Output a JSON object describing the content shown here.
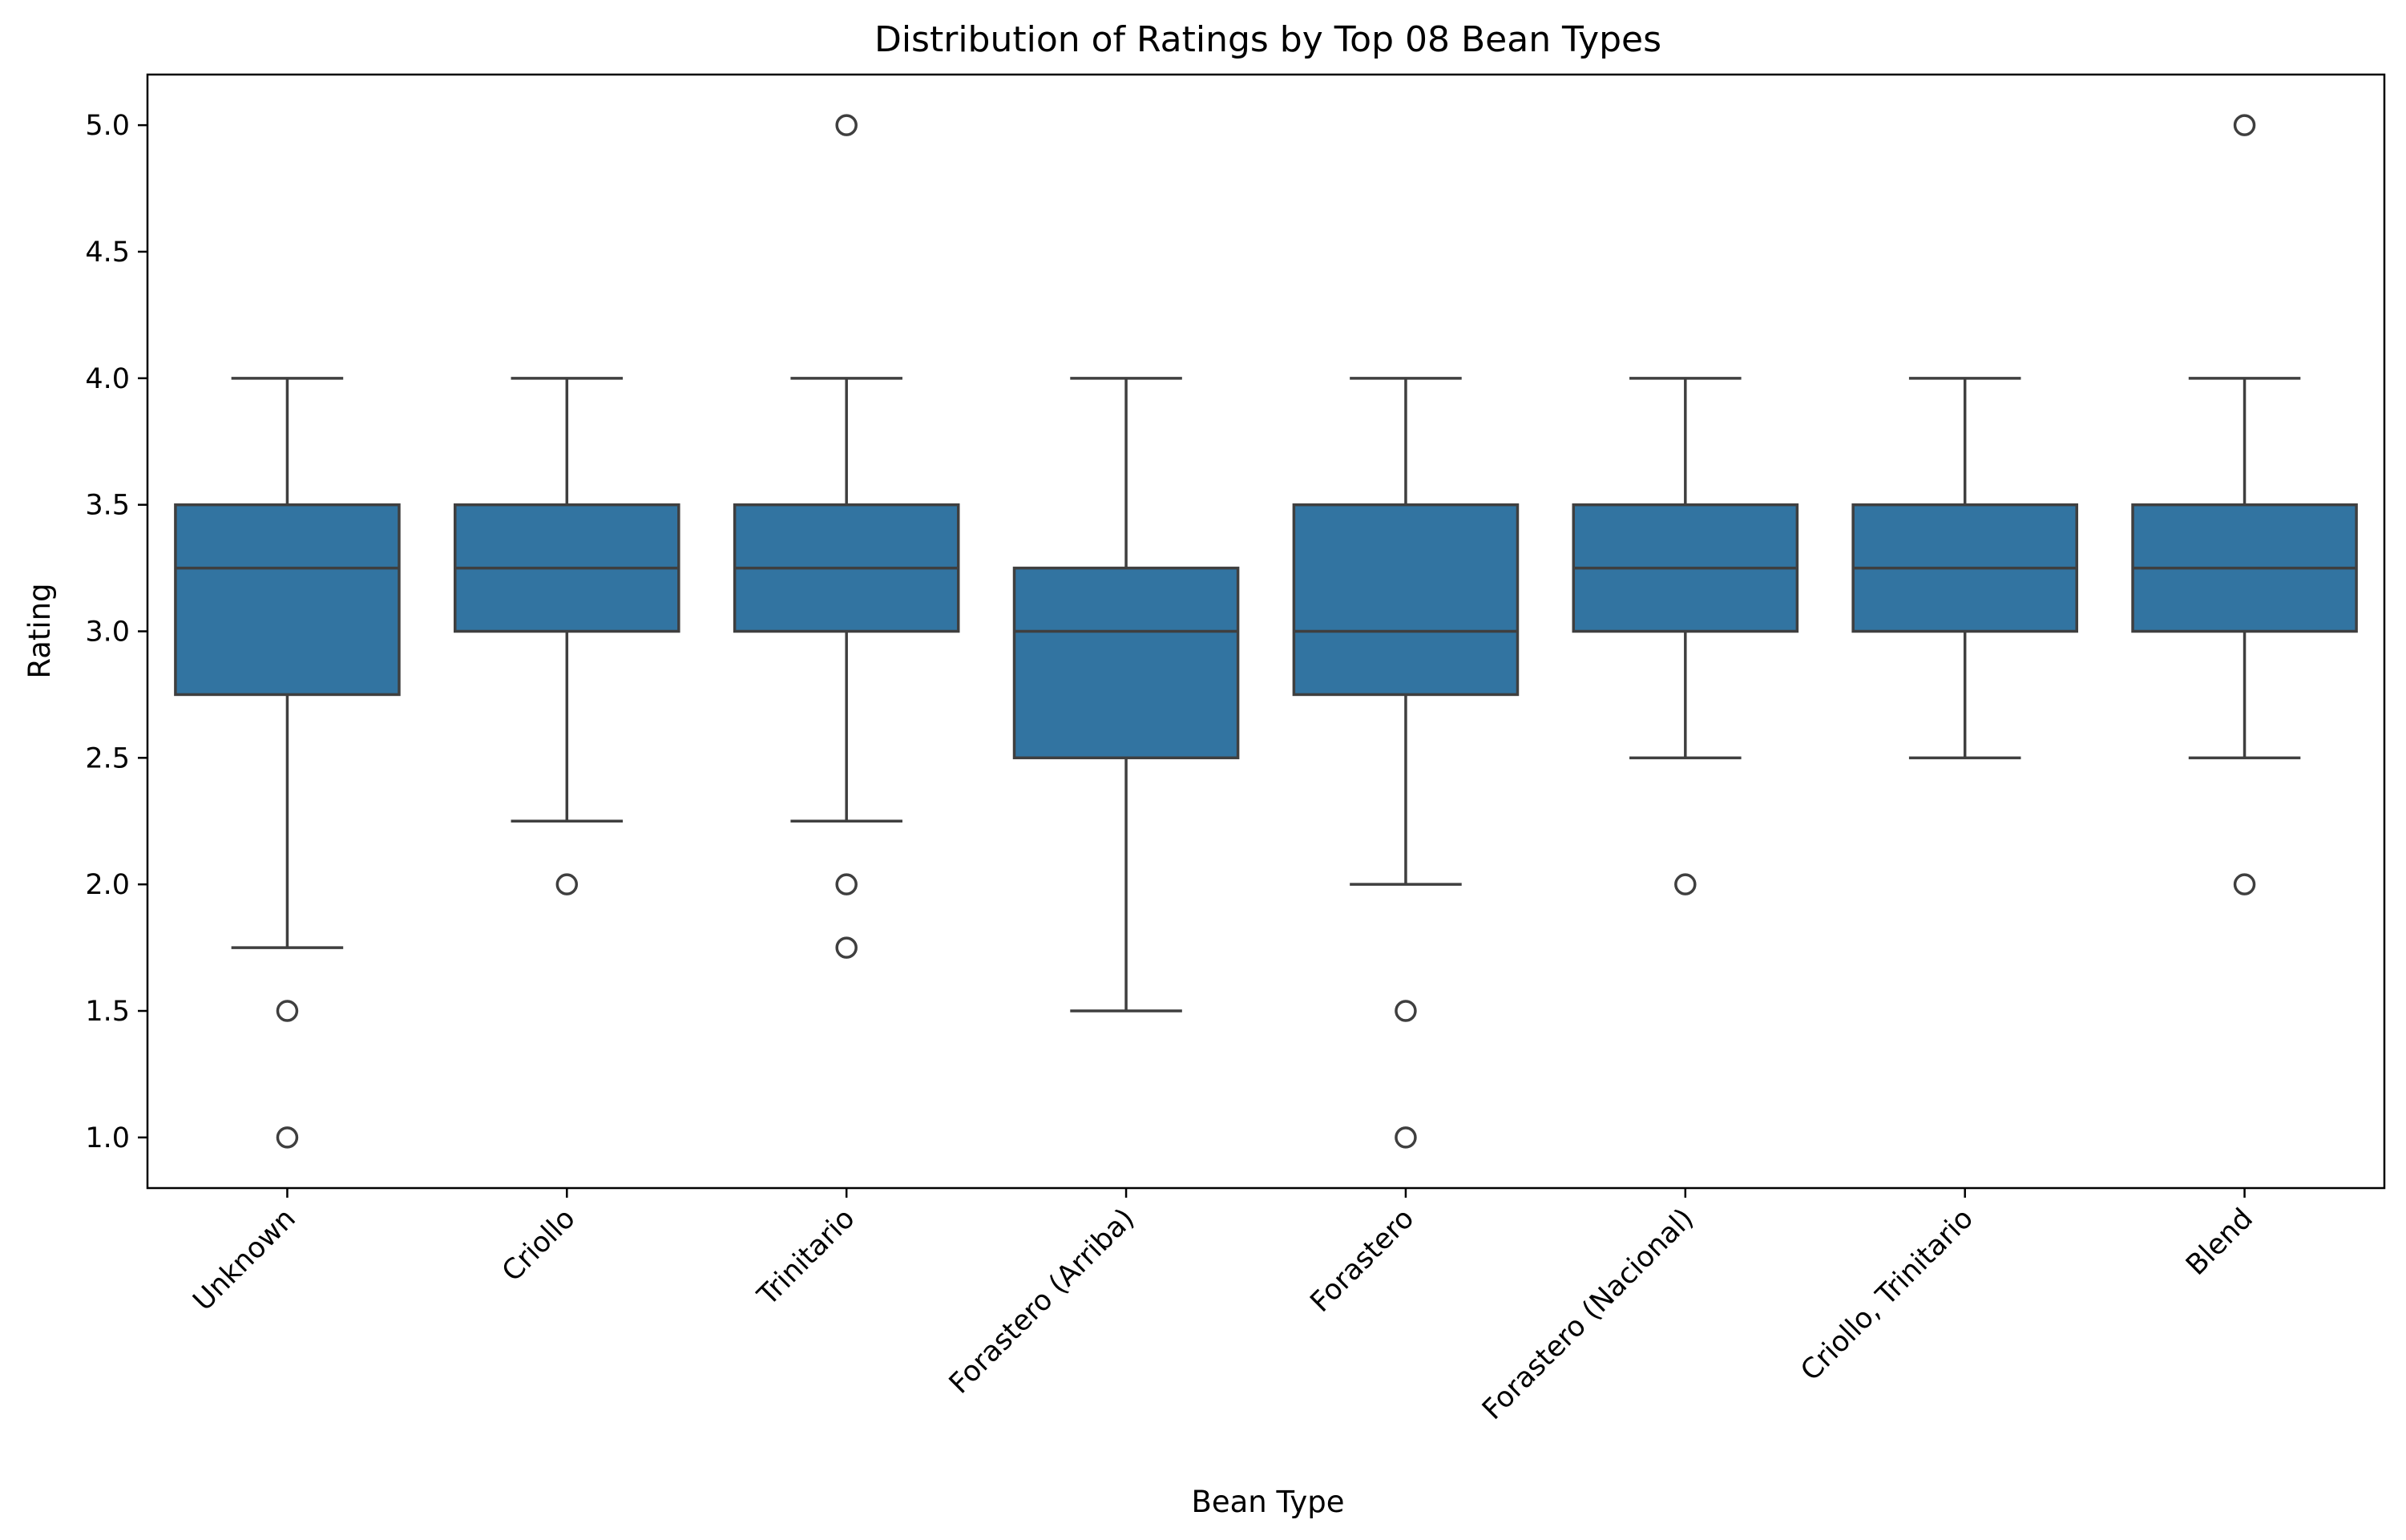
{
  "chart_data": {
    "type": "boxplot",
    "title": "Distribution of Ratings by Top 08 Bean Types",
    "xlabel": "Bean Type",
    "ylabel": "Rating",
    "ylim": [
      0.8,
      5.2
    ],
    "yticks": [
      "1.0",
      "1.5",
      "2.0",
      "2.5",
      "3.0",
      "3.5",
      "4.0",
      "4.5",
      "5.0"
    ],
    "grid": false,
    "legend": "none",
    "box_color": "#3274a1",
    "line_color": "#3f3f3f",
    "categories": [
      "Unknown",
      "Criollo",
      "Trinitario",
      "Forastero (Arriba)",
      "Forastero",
      "Forastero (Nacional)",
      "Criollo, Trinitario",
      "Blend"
    ],
    "boxes": [
      {
        "category": "Unknown",
        "whisker_low": 1.75,
        "q1": 2.75,
        "median": 3.25,
        "q3": 3.5,
        "whisker_high": 4.0,
        "outliers": [
          1.5,
          1.0
        ]
      },
      {
        "category": "Criollo",
        "whisker_low": 2.25,
        "q1": 3.0,
        "median": 3.25,
        "q3": 3.5,
        "whisker_high": 4.0,
        "outliers": [
          2.0
        ]
      },
      {
        "category": "Trinitario",
        "whisker_low": 2.25,
        "q1": 3.0,
        "median": 3.25,
        "q3": 3.5,
        "whisker_high": 4.0,
        "outliers": [
          5.0,
          2.0,
          1.75
        ]
      },
      {
        "category": "Forastero (Arriba)",
        "whisker_low": 1.5,
        "q1": 2.5,
        "median": 3.0,
        "q3": 3.25,
        "whisker_high": 4.0,
        "outliers": []
      },
      {
        "category": "Forastero",
        "whisker_low": 2.0,
        "q1": 2.75,
        "median": 3.0,
        "q3": 3.5,
        "whisker_high": 4.0,
        "outliers": [
          1.5,
          1.0
        ]
      },
      {
        "category": "Forastero (Nacional)",
        "whisker_low": 2.5,
        "q1": 3.0,
        "median": 3.25,
        "q3": 3.5,
        "whisker_high": 4.0,
        "outliers": [
          2.0
        ]
      },
      {
        "category": "Criollo, Trinitario",
        "whisker_low": 2.5,
        "q1": 3.0,
        "median": 3.25,
        "q3": 3.5,
        "whisker_high": 4.0,
        "outliers": []
      },
      {
        "category": "Blend",
        "whisker_low": 2.5,
        "q1": 3.0,
        "median": 3.25,
        "q3": 3.5,
        "whisker_high": 4.0,
        "outliers": [
          5.0,
          2.0
        ]
      }
    ]
  }
}
